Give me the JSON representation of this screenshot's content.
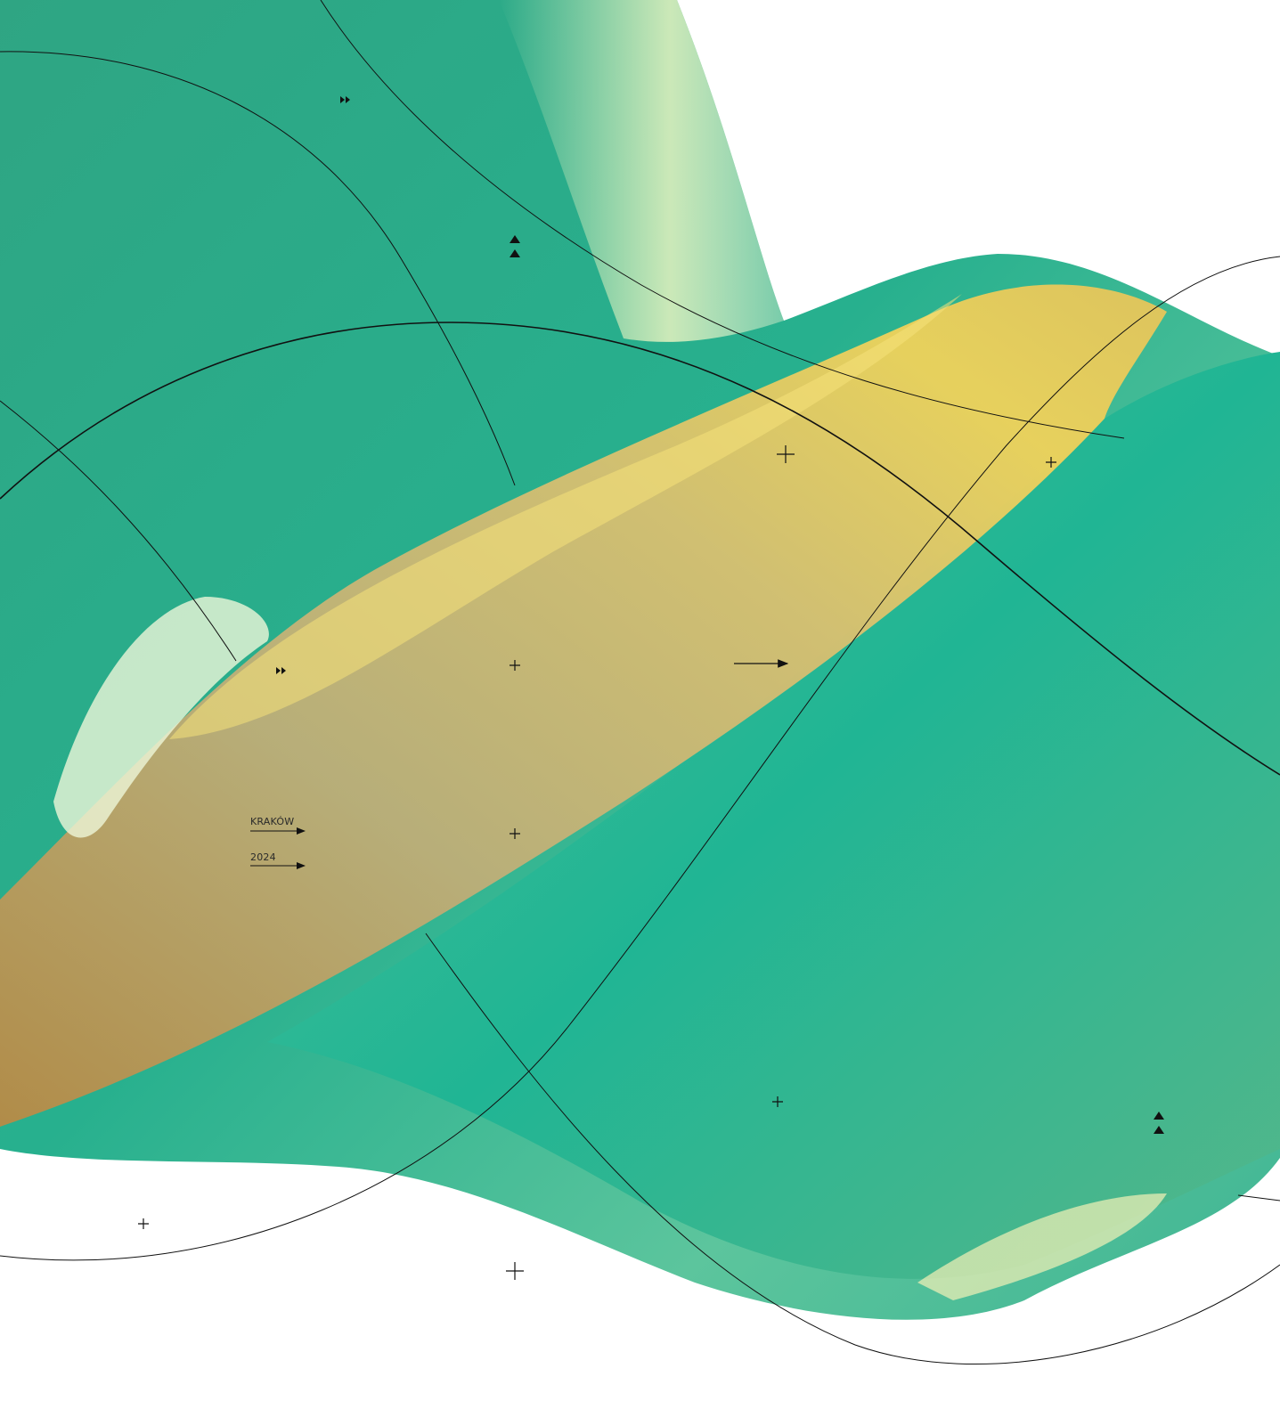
{
  "captions": [
    {
      "text": "KRAKÓW"
    },
    {
      "text": "2024"
    }
  ]
}
